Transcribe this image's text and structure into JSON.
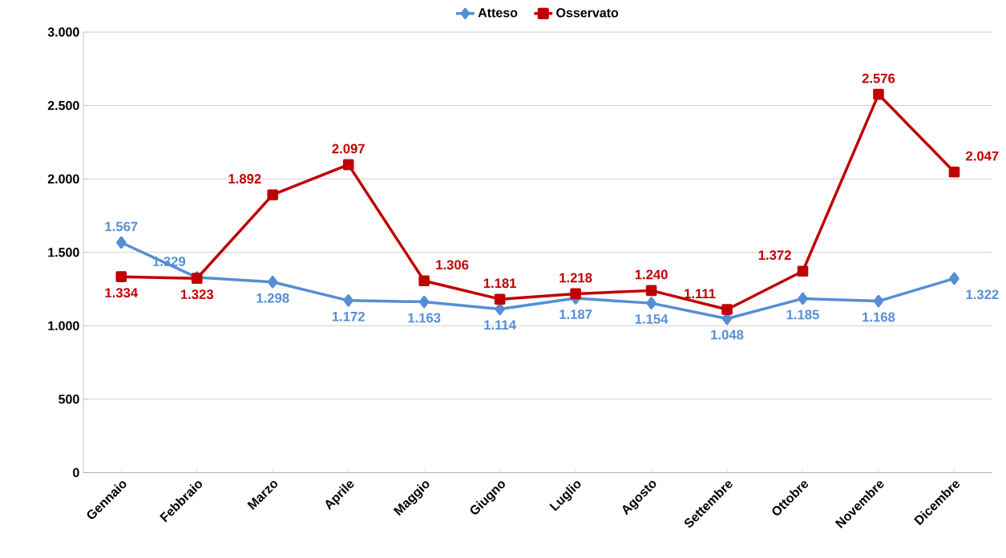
{
  "chart_data": {
    "type": "line",
    "categories": [
      "Gennaio",
      "Febbraio",
      "Marzo",
      "Aprile",
      "Maggio",
      "Giugno",
      "Luglio",
      "Agosto",
      "Settembre",
      "Ottobre",
      "Novembre",
      "Dicembre"
    ],
    "series": [
      {
        "name": "Atteso",
        "color": "#558ed5",
        "marker": "diamond",
        "values": [
          1567,
          1329,
          1298,
          1172,
          1163,
          1114,
          1187,
          1154,
          1048,
          1185,
          1168,
          1322
        ],
        "value_labels": [
          "1.567",
          "1.329",
          "1.298",
          "1.172",
          "1.163",
          "1.114",
          "1.187",
          "1.154",
          "1.048",
          "1.185",
          "1.168",
          "1.322"
        ]
      },
      {
        "name": "Osservato",
        "color": "#c00000",
        "marker": "square",
        "values": [
          1334,
          1323,
          1892,
          2097,
          1306,
          1181,
          1218,
          1240,
          1111,
          1372,
          2576,
          2047
        ],
        "value_labels": [
          "1.334",
          "1.323",
          "1.892",
          "2.097",
          "1.306",
          "1.181",
          "1.218",
          "1.240",
          "1.111",
          "1.372",
          "2.576",
          "2.047"
        ]
      }
    ],
    "ylim": [
      0,
      3000
    ],
    "yticks": [
      {
        "value": 0,
        "label": "0"
      },
      {
        "value": 500,
        "label": "500"
      },
      {
        "value": 1000,
        "label": "1.000"
      },
      {
        "value": 1500,
        "label": "1.500"
      },
      {
        "value": 2000,
        "label": "2.000"
      },
      {
        "value": 2500,
        "label": "2.500"
      },
      {
        "value": 3000,
        "label": "3.000"
      }
    ],
    "grid": "y",
    "legend": "top",
    "line_style": "solid"
  }
}
